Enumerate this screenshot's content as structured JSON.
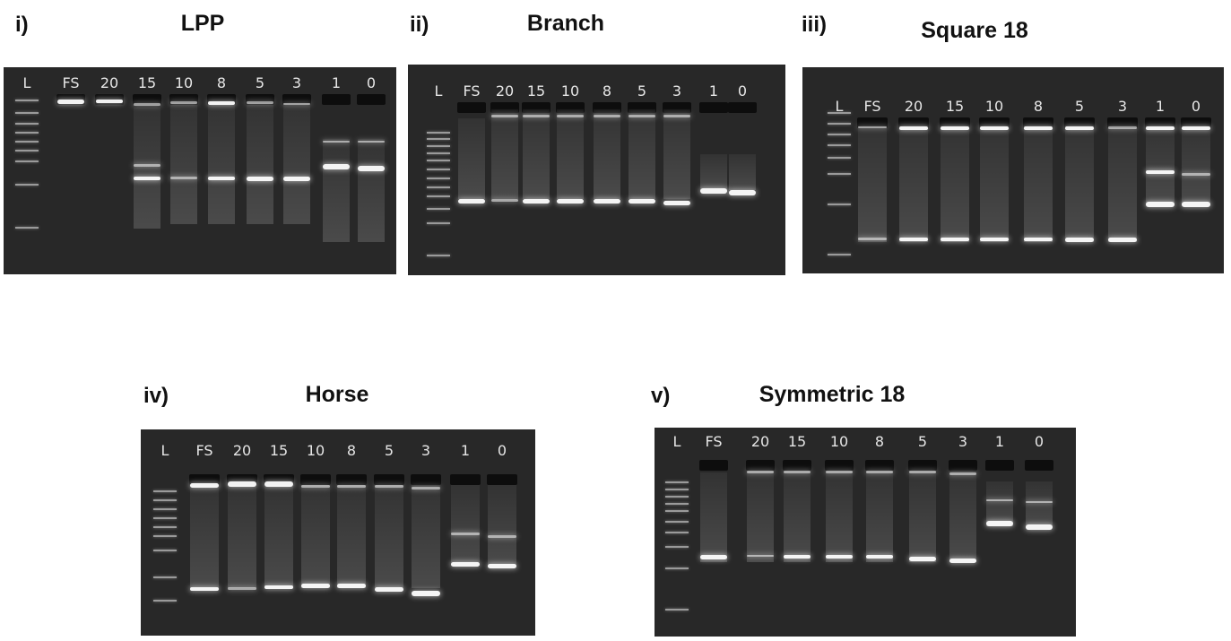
{
  "lane_labels": [
    "L",
    "FS",
    "20",
    "15",
    "10",
    "8",
    "5",
    "3",
    "1",
    "0"
  ],
  "panels": [
    {
      "id": "i",
      "label": "i)",
      "title": "LPP"
    },
    {
      "id": "ii",
      "label": "ii)",
      "title": "Branch"
    },
    {
      "id": "iii",
      "label": "iii)",
      "title": "Square 18"
    },
    {
      "id": "iv",
      "label": "iv)",
      "title": "Horse"
    },
    {
      "id": "v",
      "label": "v)",
      "title": "Symmetric 18"
    }
  ]
}
